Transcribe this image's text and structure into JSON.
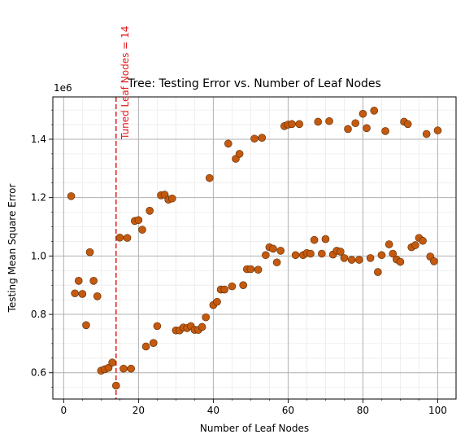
{
  "chart_data": {
    "type": "scatter",
    "title": "Tree: Testing Error vs. Number of Leaf Nodes",
    "xlabel": "Number of Leaf Nodes",
    "ylabel": "Testing Mean Square Error",
    "y_multiplier_label": "1e6",
    "xlim": [
      -2.9,
      104.9
    ],
    "ylim": [
      0.51,
      1.545
    ],
    "x_ticks": [
      0,
      20,
      40,
      60,
      80,
      100
    ],
    "x_tick_labels": [
      "0",
      "20",
      "40",
      "60",
      "80",
      "100"
    ],
    "y_ticks": [
      0.6,
      0.8,
      1.0,
      1.2,
      1.4
    ],
    "y_tick_labels": [
      "0.6",
      "0.8",
      "1.0",
      "1.2",
      "1.4"
    ],
    "grid": true,
    "minor_grid": true,
    "marker_color": "#c45a0f",
    "marker_edge_color": "#5a2a05",
    "annotation": {
      "x": 14,
      "text": "Tuned Leaf Nodes = 14",
      "color": "#e31a1c",
      "line_style": "dashed"
    },
    "points": [
      [
        2,
        1.205
      ],
      [
        3,
        0.872
      ],
      [
        4,
        0.915
      ],
      [
        5,
        0.87
      ],
      [
        6,
        0.763
      ],
      [
        7,
        1.013
      ],
      [
        8,
        0.915
      ],
      [
        9,
        0.862
      ],
      [
        10,
        0.607
      ],
      [
        11,
        0.612
      ],
      [
        12,
        0.617
      ],
      [
        13,
        0.635
      ],
      [
        14,
        0.556
      ],
      [
        15,
        1.063
      ],
      [
        16,
        0.614
      ],
      [
        17,
        1.062
      ],
      [
        18,
        0.614
      ],
      [
        19,
        1.12
      ],
      [
        20,
        1.123
      ],
      [
        21,
        1.09
      ],
      [
        22,
        0.69
      ],
      [
        23,
        1.155
      ],
      [
        24,
        0.702
      ],
      [
        25,
        0.76
      ],
      [
        26,
        1.208
      ],
      [
        27,
        1.21
      ],
      [
        28,
        1.193
      ],
      [
        29,
        1.197
      ],
      [
        30,
        0.745
      ],
      [
        31,
        0.745
      ],
      [
        32,
        0.755
      ],
      [
        33,
        0.753
      ],
      [
        34,
        0.76
      ],
      [
        35,
        0.747
      ],
      [
        36,
        0.747
      ],
      [
        37,
        0.757
      ],
      [
        38,
        0.79
      ],
      [
        39,
        1.267
      ],
      [
        40,
        0.832
      ],
      [
        41,
        0.843
      ],
      [
        42,
        0.885
      ],
      [
        43,
        0.885
      ],
      [
        44,
        1.385
      ],
      [
        45,
        0.896
      ],
      [
        46,
        1.333
      ],
      [
        47,
        1.35
      ],
      [
        48,
        0.9
      ],
      [
        49,
        0.955
      ],
      [
        50,
        0.955
      ],
      [
        51,
        1.402
      ],
      [
        52,
        0.953
      ],
      [
        53,
        1.405
      ],
      [
        54,
        1.003
      ],
      [
        55,
        1.03
      ],
      [
        56,
        1.025
      ],
      [
        57,
        0.978
      ],
      [
        58,
        1.018
      ],
      [
        59,
        1.445
      ],
      [
        60,
        1.45
      ],
      [
        61,
        1.452
      ],
      [
        62,
        1.003
      ],
      [
        63,
        1.452
      ],
      [
        64,
        1.003
      ],
      [
        65,
        1.01
      ],
      [
        66,
        1.008
      ],
      [
        67,
        1.055
      ],
      [
        68,
        1.46
      ],
      [
        69,
        1.008
      ],
      [
        70,
        1.058
      ],
      [
        71,
        1.462
      ],
      [
        72,
        1.005
      ],
      [
        73,
        1.018
      ],
      [
        74,
        1.015
      ],
      [
        75,
        0.993
      ],
      [
        76,
        1.435
      ],
      [
        77,
        0.987
      ],
      [
        78,
        1.455
      ],
      [
        79,
        0.987
      ],
      [
        80,
        1.487
      ],
      [
        81,
        1.438
      ],
      [
        82,
        0.993
      ],
      [
        83,
        1.498
      ],
      [
        84,
        0.945
      ],
      [
        85,
        1.003
      ],
      [
        86,
        1.428
      ],
      [
        87,
        1.04
      ],
      [
        88,
        1.008
      ],
      [
        89,
        0.988
      ],
      [
        90,
        0.98
      ],
      [
        91,
        1.46
      ],
      [
        92,
        1.452
      ],
      [
        93,
        1.03
      ],
      [
        94,
        1.037
      ],
      [
        95,
        1.062
      ],
      [
        96,
        1.052
      ],
      [
        97,
        1.418
      ],
      [
        98,
        0.998
      ],
      [
        99,
        0.982
      ],
      [
        100,
        1.43
      ]
    ]
  }
}
